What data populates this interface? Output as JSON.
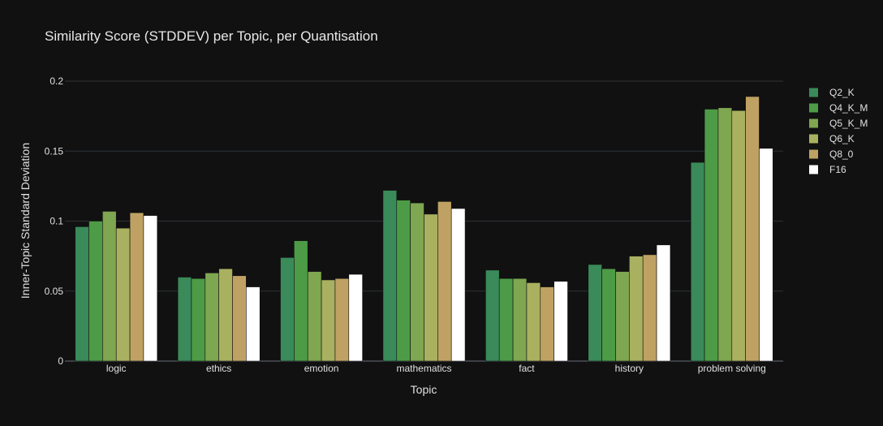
{
  "chart_data": {
    "type": "bar",
    "title": "Similarity Score (STDDEV) per Topic, per Quantisation",
    "xlabel": "Topic",
    "ylabel": "Inner-Topic Standard Deviation",
    "ylim": [
      0,
      0.2
    ],
    "yticks": [
      0,
      0.05,
      0.1,
      0.15,
      0.2
    ],
    "ytick_labels": [
      "0",
      "0.05",
      "0.1",
      "0.15",
      "0.2"
    ],
    "grid": true,
    "legend_position": "right",
    "categories": [
      "logic",
      "ethics",
      "emotion",
      "mathematics",
      "fact",
      "history",
      "problem solving"
    ],
    "series": [
      {
        "name": "Q2_K",
        "color": "#3a8a5a",
        "values": [
          0.096,
          0.06,
          0.074,
          0.122,
          0.065,
          0.069,
          0.142
        ]
      },
      {
        "name": "Q4_K_M",
        "color": "#4d9b46",
        "values": [
          0.1,
          0.059,
          0.086,
          0.115,
          0.059,
          0.066,
          0.18
        ]
      },
      {
        "name": "Q5_K_M",
        "color": "#7fa650",
        "values": [
          0.107,
          0.063,
          0.064,
          0.113,
          0.059,
          0.064,
          0.181
        ]
      },
      {
        "name": "Q6_K",
        "color": "#a9b160",
        "values": [
          0.095,
          0.066,
          0.058,
          0.105,
          0.056,
          0.075,
          0.179
        ]
      },
      {
        "name": "Q8_0",
        "color": "#bfa263",
        "values": [
          0.106,
          0.061,
          0.059,
          0.114,
          0.053,
          0.076,
          0.189
        ]
      },
      {
        "name": "F16",
        "color": "#ffffff",
        "values": [
          0.104,
          0.053,
          0.062,
          0.109,
          0.057,
          0.083,
          0.152
        ]
      }
    ]
  }
}
